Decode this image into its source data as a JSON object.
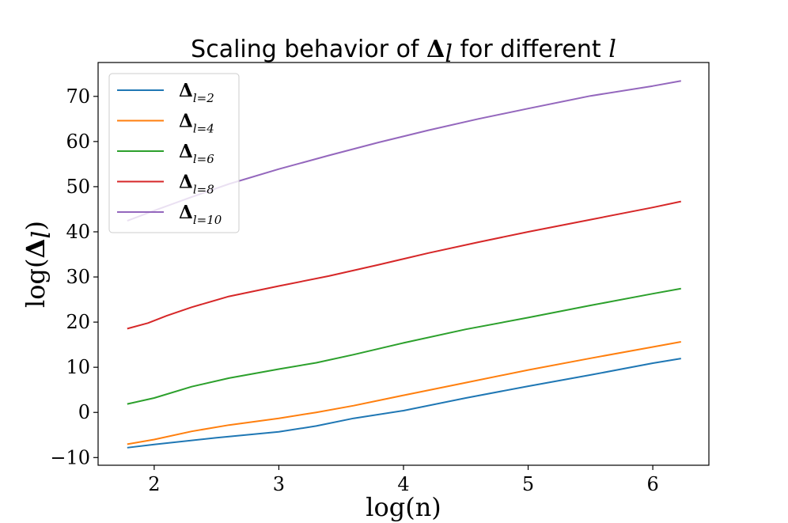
{
  "chart_data": {
    "type": "line",
    "title": {
      "prefix": "Scaling behavior of ",
      "symbol": "Δ",
      "symbol_sub": "l",
      "middle": " for different ",
      "variable": "l"
    },
    "xlabel": "log(n)",
    "ylabel": {
      "prefix": "log(",
      "symbol": "Δ",
      "symbol_sub": "l",
      "suffix": ")"
    },
    "xlim": [
      1.55,
      6.45
    ],
    "ylim": [
      -11.7,
      77.5
    ],
    "xticks": [
      2,
      3,
      4,
      5,
      6
    ],
    "xtick_labels": [
      "2",
      "3",
      "4",
      "5",
      "6"
    ],
    "yticks": [
      -10,
      0,
      10,
      20,
      30,
      40,
      50,
      60,
      70
    ],
    "ytick_labels": [
      "−10",
      "0",
      "10",
      "20",
      "30",
      "40",
      "50",
      "60",
      "70"
    ],
    "grid": false,
    "legend_position": "upper-left",
    "series": [
      {
        "name": "Δl=2",
        "legend_symbol": "Δ",
        "legend_sub": "l=2",
        "color": "#1f77b4",
        "x": [
          1.79,
          2.0,
          2.5,
          3.0,
          3.3,
          3.6,
          4.0,
          4.5,
          5.0,
          5.5,
          6.0,
          6.22
        ],
        "y": [
          -7.8,
          -7.1,
          -5.6,
          -4.3,
          -3.0,
          -1.3,
          0.4,
          3.2,
          5.8,
          8.3,
          10.9,
          11.9
        ]
      },
      {
        "name": "Δl=4",
        "legend_symbol": "Δ",
        "legend_sub": "l=4",
        "color": "#ff7f0e",
        "x": [
          1.79,
          2.0,
          2.3,
          2.6,
          3.0,
          3.3,
          3.6,
          4.0,
          4.5,
          5.0,
          5.5,
          6.0,
          6.22
        ],
        "y": [
          -7.0,
          -6.0,
          -4.2,
          -2.8,
          -1.3,
          0.0,
          1.5,
          3.8,
          6.6,
          9.4,
          12.0,
          14.5,
          15.6
        ]
      },
      {
        "name": "Δl=6",
        "legend_symbol": "Δ",
        "legend_sub": "l=6",
        "color": "#2ca02c",
        "x": [
          1.79,
          2.0,
          2.3,
          2.6,
          3.0,
          3.3,
          3.6,
          4.0,
          4.5,
          5.0,
          5.5,
          6.0,
          6.22
        ],
        "y": [
          1.9,
          3.2,
          5.7,
          7.6,
          9.6,
          11.0,
          12.8,
          15.4,
          18.4,
          21.0,
          23.7,
          26.3,
          27.4
        ]
      },
      {
        "name": "Δl=8",
        "legend_symbol": "Δ",
        "legend_sub": "l=8",
        "color": "#d62728",
        "x": [
          1.79,
          1.95,
          2.1,
          2.3,
          2.6,
          3.0,
          3.4,
          3.8,
          4.2,
          4.6,
          5.0,
          5.5,
          6.0,
          6.22
        ],
        "y": [
          18.6,
          19.8,
          21.4,
          23.3,
          25.7,
          28.0,
          30.2,
          32.7,
          35.3,
          37.7,
          40.0,
          42.7,
          45.4,
          46.7
        ]
      },
      {
        "name": "Δl=10",
        "legend_symbol": "Δ",
        "legend_sub": "l=10",
        "color": "#9467bd",
        "x": [
          1.79,
          2.0,
          2.3,
          2.6,
          3.0,
          3.4,
          3.8,
          4.2,
          4.6,
          5.0,
          5.5,
          6.0,
          6.22
        ],
        "y": [
          42.5,
          44.7,
          47.7,
          50.6,
          53.9,
          56.9,
          59.8,
          62.5,
          65.0,
          67.3,
          70.1,
          72.3,
          73.4
        ]
      }
    ]
  }
}
